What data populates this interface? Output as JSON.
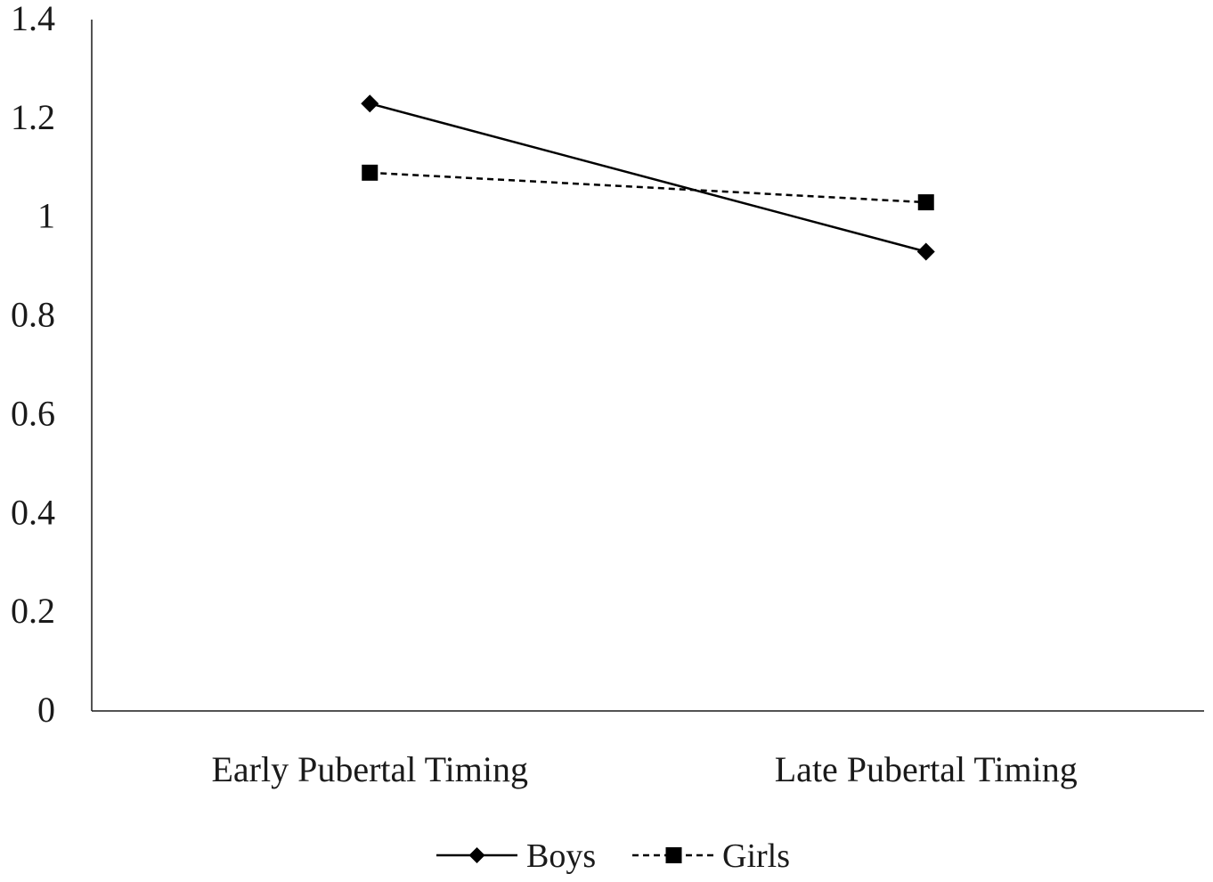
{
  "chart_data": {
    "type": "line",
    "title": "",
    "xlabel": "",
    "ylabel": "",
    "categories": [
      "Early Pubertal Timing",
      "Late Pubertal Timing"
    ],
    "ylim": [
      0,
      1.4
    ],
    "yticks": [
      "0",
      "0.2",
      "0.4",
      "0.6",
      "0.8",
      "1",
      "1.2",
      "1.4"
    ],
    "grid": false,
    "legend_position": "bottom",
    "series": [
      {
        "name": "Boys",
        "values": [
          1.23,
          0.93
        ],
        "line_style": "solid",
        "marker": "diamond",
        "color": "#000000"
      },
      {
        "name": "Girls",
        "values": [
          1.09,
          1.03
        ],
        "line_style": "dashed",
        "marker": "square",
        "color": "#000000"
      }
    ]
  }
}
